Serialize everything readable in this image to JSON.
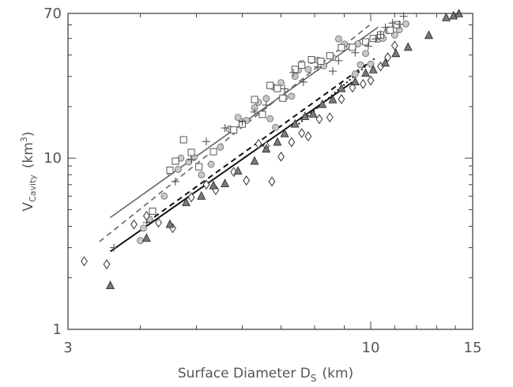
{
  "chart_data": {
    "type": "scatter",
    "title": "",
    "xlabel": {
      "main": "Surface Diameter D",
      "sub": "S",
      "unit": "(km)"
    },
    "ylabel": {
      "main": "V",
      "sub": "Cavity",
      "unit_pre": "(km",
      "unit_sup": "3",
      "unit_post": ")"
    },
    "xscale": "log",
    "yscale": "log",
    "xlim": [
      3,
      15
    ],
    "ylim": [
      1,
      70
    ],
    "grid": false,
    "x_ticks": [
      {
        "value": 3,
        "label": "3"
      },
      {
        "value": 10,
        "label": "10"
      },
      {
        "value": 15,
        "label": "15"
      }
    ],
    "y_ticks": [
      {
        "value": 1,
        "label": "1"
      },
      {
        "value": 10,
        "label": "10"
      },
      {
        "value": 70,
        "label": "70"
      }
    ],
    "colors": {
      "axis": "#444444",
      "circle_fill": "#c8c8c8",
      "triangle_fill": "#7a7a7a",
      "line_dark": "#111111",
      "line_gray": "#666666"
    },
    "series": [
      {
        "marker": "circle",
        "points": [
          [
            4.0,
            3.3
          ],
          [
            4.05,
            3.9
          ],
          [
            4.15,
            4.4
          ],
          [
            4.4,
            6.0
          ],
          [
            4.5,
            8.3
          ],
          [
            4.65,
            8.6
          ],
          [
            4.7,
            10.0
          ],
          [
            4.85,
            9.5
          ],
          [
            4.95,
            10.1
          ],
          [
            5.1,
            8.0
          ],
          [
            5.3,
            9.2
          ],
          [
            5.5,
            11.6
          ],
          [
            5.7,
            14.8
          ],
          [
            5.9,
            17.3
          ],
          [
            6.1,
            16.6
          ],
          [
            6.3,
            19.7
          ],
          [
            6.4,
            21.2
          ],
          [
            6.6,
            22.3
          ],
          [
            6.7,
            17.0
          ],
          [
            6.8,
            26.0
          ],
          [
            6.85,
            15.1
          ],
          [
            7.0,
            27.6
          ],
          [
            7.1,
            22.6
          ],
          [
            7.3,
            23.0
          ],
          [
            7.4,
            30.0
          ],
          [
            7.5,
            32.6
          ],
          [
            7.6,
            35.7
          ],
          [
            7.8,
            33.0
          ],
          [
            7.9,
            37.2
          ],
          [
            8.1,
            37.3
          ],
          [
            8.3,
            34.6
          ],
          [
            8.6,
            38.7
          ],
          [
            8.8,
            49.7
          ],
          [
            9.0,
            46.4
          ],
          [
            9.2,
            44.7
          ],
          [
            9.4,
            31.0
          ],
          [
            9.5,
            46.5
          ],
          [
            9.6,
            35.1
          ],
          [
            9.8,
            40.9
          ],
          [
            10.0,
            35.4
          ],
          [
            10.3,
            49.5
          ],
          [
            10.5,
            50.1
          ],
          [
            10.7,
            55.5
          ],
          [
            11.0,
            52.3
          ],
          [
            11.2,
            56.2
          ],
          [
            11.5,
            60.8
          ]
        ]
      },
      {
        "marker": "square",
        "points": [
          [
            4.2,
            4.9
          ],
          [
            4.5,
            8.5
          ],
          [
            4.6,
            9.6
          ],
          [
            4.75,
            12.8
          ],
          [
            4.9,
            10.8
          ],
          [
            5.05,
            8.9
          ],
          [
            5.35,
            10.9
          ],
          [
            5.8,
            14.6
          ],
          [
            6.0,
            15.8
          ],
          [
            6.3,
            22.0
          ],
          [
            6.5,
            18.0
          ],
          [
            6.7,
            26.6
          ],
          [
            6.9,
            25.5
          ],
          [
            7.05,
            22.4
          ],
          [
            7.4,
            33.0
          ],
          [
            7.6,
            34.9
          ],
          [
            7.9,
            37.6
          ],
          [
            8.2,
            36.8
          ],
          [
            8.5,
            39.6
          ],
          [
            8.9,
            44.2
          ],
          [
            9.3,
            44.4
          ],
          [
            9.8,
            47.8
          ],
          [
            10.1,
            50.0
          ],
          [
            10.4,
            52.4
          ],
          [
            10.8,
            55.9
          ],
          [
            11.1,
            60.2
          ]
        ]
      },
      {
        "marker": "plus",
        "points": [
          [
            3.6,
            3.0
          ],
          [
            4.1,
            4.2
          ],
          [
            4.6,
            7.3
          ],
          [
            4.9,
            9.8
          ],
          [
            5.2,
            12.5
          ],
          [
            5.6,
            15.0
          ],
          [
            6.0,
            16.3
          ],
          [
            6.3,
            18.6
          ],
          [
            6.6,
            20.4
          ],
          [
            7.1,
            25.4
          ],
          [
            7.35,
            31.6
          ],
          [
            7.65,
            27.8
          ],
          [
            8.1,
            34.1
          ],
          [
            8.6,
            32.2
          ],
          [
            8.8,
            37.1
          ],
          [
            9.4,
            41.3
          ],
          [
            9.9,
            45.1
          ],
          [
            10.2,
            49.6
          ],
          [
            10.4,
            52.8
          ],
          [
            10.6,
            58.0
          ],
          [
            10.9,
            61.5
          ],
          [
            11.2,
            60.4
          ],
          [
            11.4,
            67.4
          ]
        ]
      },
      {
        "marker": "diamond",
        "points": [
          [
            3.2,
            2.5
          ],
          [
            3.5,
            2.4
          ],
          [
            3.9,
            4.1
          ],
          [
            4.1,
            4.6
          ],
          [
            4.3,
            4.2
          ],
          [
            4.55,
            3.9
          ],
          [
            4.9,
            5.9
          ],
          [
            5.2,
            7.0
          ],
          [
            5.4,
            6.5
          ],
          [
            5.8,
            8.3
          ],
          [
            6.1,
            7.4
          ],
          [
            6.4,
            12.1
          ],
          [
            6.6,
            11.8
          ],
          [
            6.75,
            7.3
          ],
          [
            7.0,
            10.2
          ],
          [
            7.3,
            12.4
          ],
          [
            7.6,
            14.0
          ],
          [
            7.8,
            13.4
          ],
          [
            8.15,
            16.9
          ],
          [
            8.5,
            17.3
          ],
          [
            8.9,
            22.1
          ],
          [
            9.3,
            25.8
          ],
          [
            9.7,
            27.1
          ],
          [
            10.0,
            28.4
          ],
          [
            10.4,
            34.3
          ],
          [
            10.7,
            38.8
          ],
          [
            11.0,
            45.4
          ]
        ]
      },
      {
        "marker": "triangle",
        "points": [
          [
            3.55,
            1.8
          ],
          [
            4.1,
            3.4
          ],
          [
            4.5,
            4.1
          ],
          [
            4.8,
            5.5
          ],
          [
            5.1,
            6.0
          ],
          [
            5.35,
            6.9
          ],
          [
            5.6,
            7.1
          ],
          [
            5.9,
            8.4
          ],
          [
            6.3,
            9.6
          ],
          [
            6.6,
            11.3
          ],
          [
            6.9,
            12.4
          ],
          [
            7.1,
            13.9
          ],
          [
            7.4,
            15.8
          ],
          [
            7.7,
            17.5
          ],
          [
            7.95,
            18.1
          ],
          [
            8.25,
            20.6
          ],
          [
            8.6,
            21.9
          ],
          [
            8.9,
            25.5
          ],
          [
            9.4,
            27.9
          ],
          [
            9.8,
            31.3
          ],
          [
            10.1,
            32.8
          ],
          [
            10.6,
            35.9
          ],
          [
            11.05,
            40.8
          ],
          [
            11.6,
            44.4
          ],
          [
            12.6,
            52.1
          ],
          [
            13.5,
            66.1
          ],
          [
            13.9,
            67.7
          ],
          [
            14.2,
            69.7
          ]
        ]
      }
    ],
    "fits": [
      {
        "style": "solid",
        "color": "gray",
        "x": [
          3.55,
          10.3
        ],
        "y": [
          4.5,
          58.2
        ]
      },
      {
        "style": "dashed",
        "color": "gray",
        "x": [
          3.4,
          9.95
        ],
        "y": [
          3.25,
          59.8
        ]
      },
      {
        "style": "solid",
        "color": "black",
        "x": [
          3.55,
          9.3
        ],
        "y": [
          2.85,
          27.8
        ]
      },
      {
        "style": "dashed",
        "color": "black",
        "x": [
          4.1,
          9.95
        ],
        "y": [
          4.2,
          36.3
        ]
      },
      {
        "style": "dotted",
        "color": "black",
        "x": [
          7.5,
          10.15
        ],
        "y": [
          15.8,
          38.1
        ]
      }
    ]
  }
}
